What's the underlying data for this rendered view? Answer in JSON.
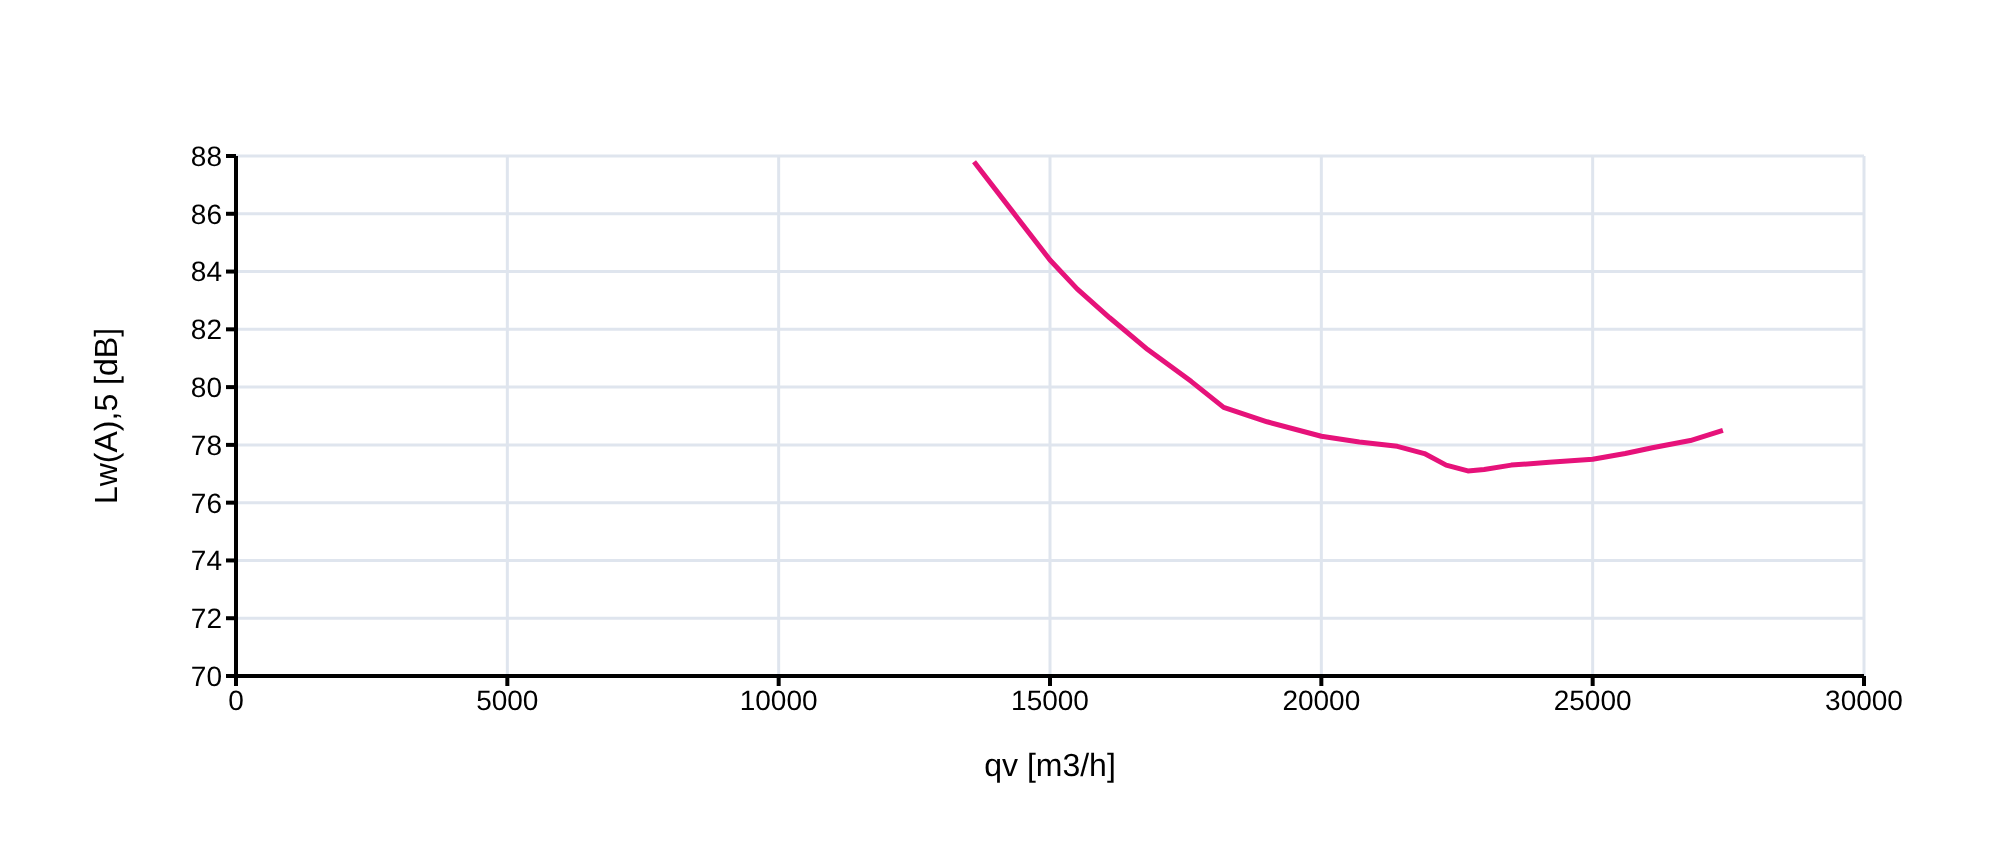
{
  "chart_data": {
    "type": "line",
    "xlabel": "qv [m3/h]",
    "ylabel": "Lw(A),5 [dB]",
    "x": [
      13600,
      14300,
      15000,
      15500,
      16100,
      16800,
      17600,
      18200,
      19000,
      20000,
      20700,
      21400,
      21900,
      22300,
      22700,
      23000,
      23500,
      24200,
      25000,
      25600,
      26100,
      26800,
      27400
    ],
    "series": [
      {
        "color": "#e6127a",
        "values": [
          87.8,
          86.1,
          84.4,
          83.4,
          82.4,
          81.3,
          80.2,
          79.3,
          78.8,
          78.3,
          78.1,
          77.95,
          77.7,
          77.3,
          77.1,
          77.15,
          77.3,
          77.4,
          77.5,
          77.7,
          77.9,
          78.15,
          78.5
        ]
      }
    ],
    "xlim": [
      0,
      30000
    ],
    "xticks": [
      0,
      5000,
      10000,
      15000,
      20000,
      25000,
      30000
    ],
    "ylim": [
      70,
      88
    ],
    "yticks": [
      70,
      72,
      74,
      76,
      78,
      80,
      82,
      84,
      86,
      88
    ],
    "grid": true,
    "legend": false,
    "marker": "none",
    "line_style": "solid"
  }
}
